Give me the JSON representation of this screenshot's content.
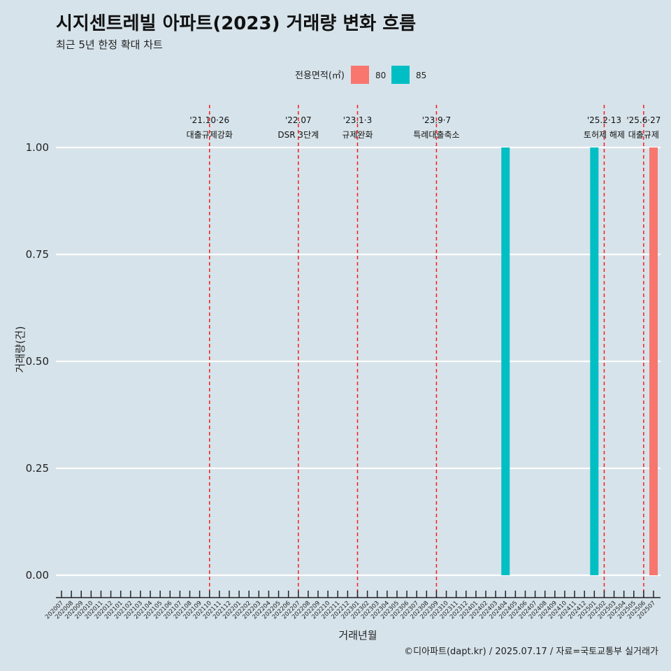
{
  "chart_data": {
    "type": "bar",
    "title": "시지센트레빌 아파트(2023) 거래량 변화 흐름",
    "subtitle": "최근 5년 한정 확대 차트",
    "xlabel": "거래년월",
    "ylabel": "거래량(건)",
    "ylim": [
      0,
      1
    ],
    "yticks": [
      "0.00",
      "0.25",
      "0.50",
      "0.75",
      "1.00"
    ],
    "grid": "horizontal",
    "legend": {
      "title": "전용면적(㎡)",
      "placement": "top",
      "items": [
        {
          "label": "80",
          "color": "#f8766d"
        },
        {
          "label": "85",
          "color": "#00bfc4"
        }
      ]
    },
    "categories": [
      "202007",
      "202008",
      "202009",
      "202010",
      "202011",
      "202012",
      "202101",
      "202102",
      "202103",
      "202104",
      "202105",
      "202106",
      "202107",
      "202108",
      "202109",
      "202110",
      "202111",
      "202112",
      "202201",
      "202202",
      "202203",
      "202204",
      "202205",
      "202206",
      "202207",
      "202208",
      "202209",
      "202210",
      "202211",
      "202212",
      "202301",
      "202302",
      "202303",
      "202304",
      "202305",
      "202306",
      "202307",
      "202308",
      "202309",
      "202310",
      "202311",
      "202312",
      "202401",
      "202402",
      "202403",
      "202404",
      "202405",
      "202406",
      "202407",
      "202408",
      "202409",
      "202410",
      "202411",
      "202412",
      "202501",
      "202502",
      "202503",
      "202504",
      "202505",
      "202506",
      "202507"
    ],
    "series": [
      {
        "name": "80",
        "color": "#f8766d",
        "points": [
          {
            "x": "202507",
            "y": 1
          }
        ]
      },
      {
        "name": "85",
        "color": "#00bfc4",
        "points": [
          {
            "x": "202404",
            "y": 1
          },
          {
            "x": "202501",
            "y": 1
          }
        ]
      }
    ],
    "annotations": [
      {
        "x": "202110",
        "date": "'21.10·26",
        "label": "대출규제강화"
      },
      {
        "x": "202207",
        "date": "'22.07",
        "label": "DSR 3단계"
      },
      {
        "x": "202301",
        "date": "'23.1·3",
        "label": "규제완화"
      },
      {
        "x": "202309",
        "date": "'23.9·7",
        "label": "특례대출축소"
      },
      {
        "x": "202502",
        "date": "'25.2·13",
        "label": "토허제 해제"
      },
      {
        "x": "202506",
        "date": "'25.6·27",
        "label": "대출규제"
      }
    ],
    "caption": "©디아파트(dapt.kr) / 2025.07.17 / 자료=국토교통부 실거래가"
  }
}
